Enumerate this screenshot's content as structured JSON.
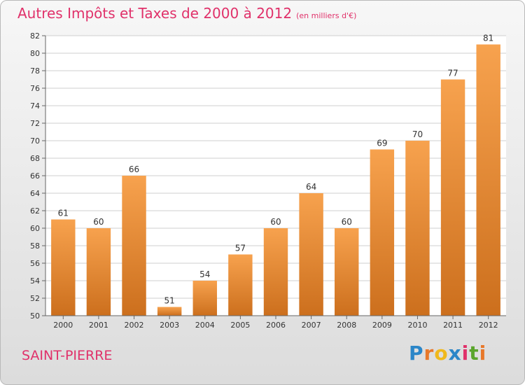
{
  "title": "Autres Impôts et Taxes de 2000 à 2012",
  "unit_note": "(en milliers d'€)",
  "location": "SAINT-PIERRE",
  "logo": {
    "text": "Proxiti",
    "letters": [
      "P",
      "r",
      "o",
      "x",
      "i",
      "t",
      "i"
    ],
    "colors": [
      "#2b86c8",
      "#e8782a",
      "#f0b81c",
      "#2b86c8",
      "#e0316a",
      "#5aa52c",
      "#e8782a"
    ]
  },
  "colors": {
    "accent": "#e0316a",
    "bar_light": "#f7a24e",
    "bar_dark": "#cc6f1d"
  },
  "chart_data": {
    "type": "bar",
    "categories": [
      "2000",
      "2001",
      "2002",
      "2003",
      "2004",
      "2005",
      "2006",
      "2007",
      "2008",
      "2009",
      "2010",
      "2011",
      "2012"
    ],
    "values": [
      61,
      60,
      66,
      51,
      54,
      57,
      60,
      64,
      60,
      69,
      70,
      77,
      81
    ],
    "ylim": [
      50,
      82
    ],
    "yticks": [
      50,
      52,
      54,
      56,
      58,
      60,
      62,
      64,
      66,
      68,
      70,
      72,
      74,
      76,
      78,
      80,
      82
    ],
    "grid": true
  }
}
